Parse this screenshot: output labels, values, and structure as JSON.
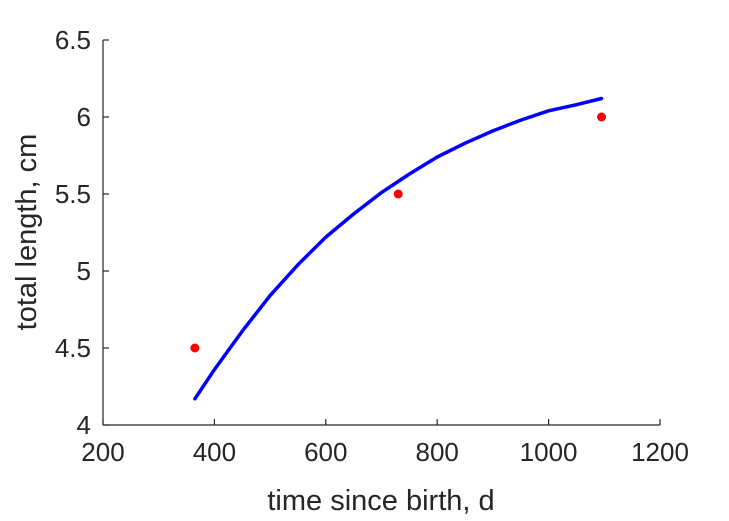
{
  "chart_data": {
    "type": "scatter",
    "xlabel": "time since birth, d",
    "ylabel": "total length, cm",
    "xlim": [
      200,
      1200
    ],
    "ylim": [
      4,
      6.5
    ],
    "xticks": [
      "200",
      "400",
      "600",
      "800",
      "1000",
      "1200"
    ],
    "yticks": [
      "4",
      "4.5",
      "5",
      "5.5",
      "6",
      "6.5"
    ],
    "grid": false,
    "series": [
      {
        "kind": "points",
        "color": "#ff0000",
        "x": [
          365,
          730,
          1095
        ],
        "y": [
          4.5,
          5.5,
          6.0
        ]
      },
      {
        "kind": "line",
        "color": "#0000ff",
        "x": [
          365,
          400,
          450,
          500,
          550,
          600,
          650,
          700,
          750,
          800,
          850,
          900,
          950,
          1000,
          1050,
          1095
        ],
        "y": [
          4.17,
          4.36,
          4.61,
          4.84,
          5.04,
          5.22,
          5.37,
          5.51,
          5.63,
          5.74,
          5.83,
          5.91,
          5.98,
          6.04,
          6.08,
          6.12
        ]
      }
    ]
  }
}
